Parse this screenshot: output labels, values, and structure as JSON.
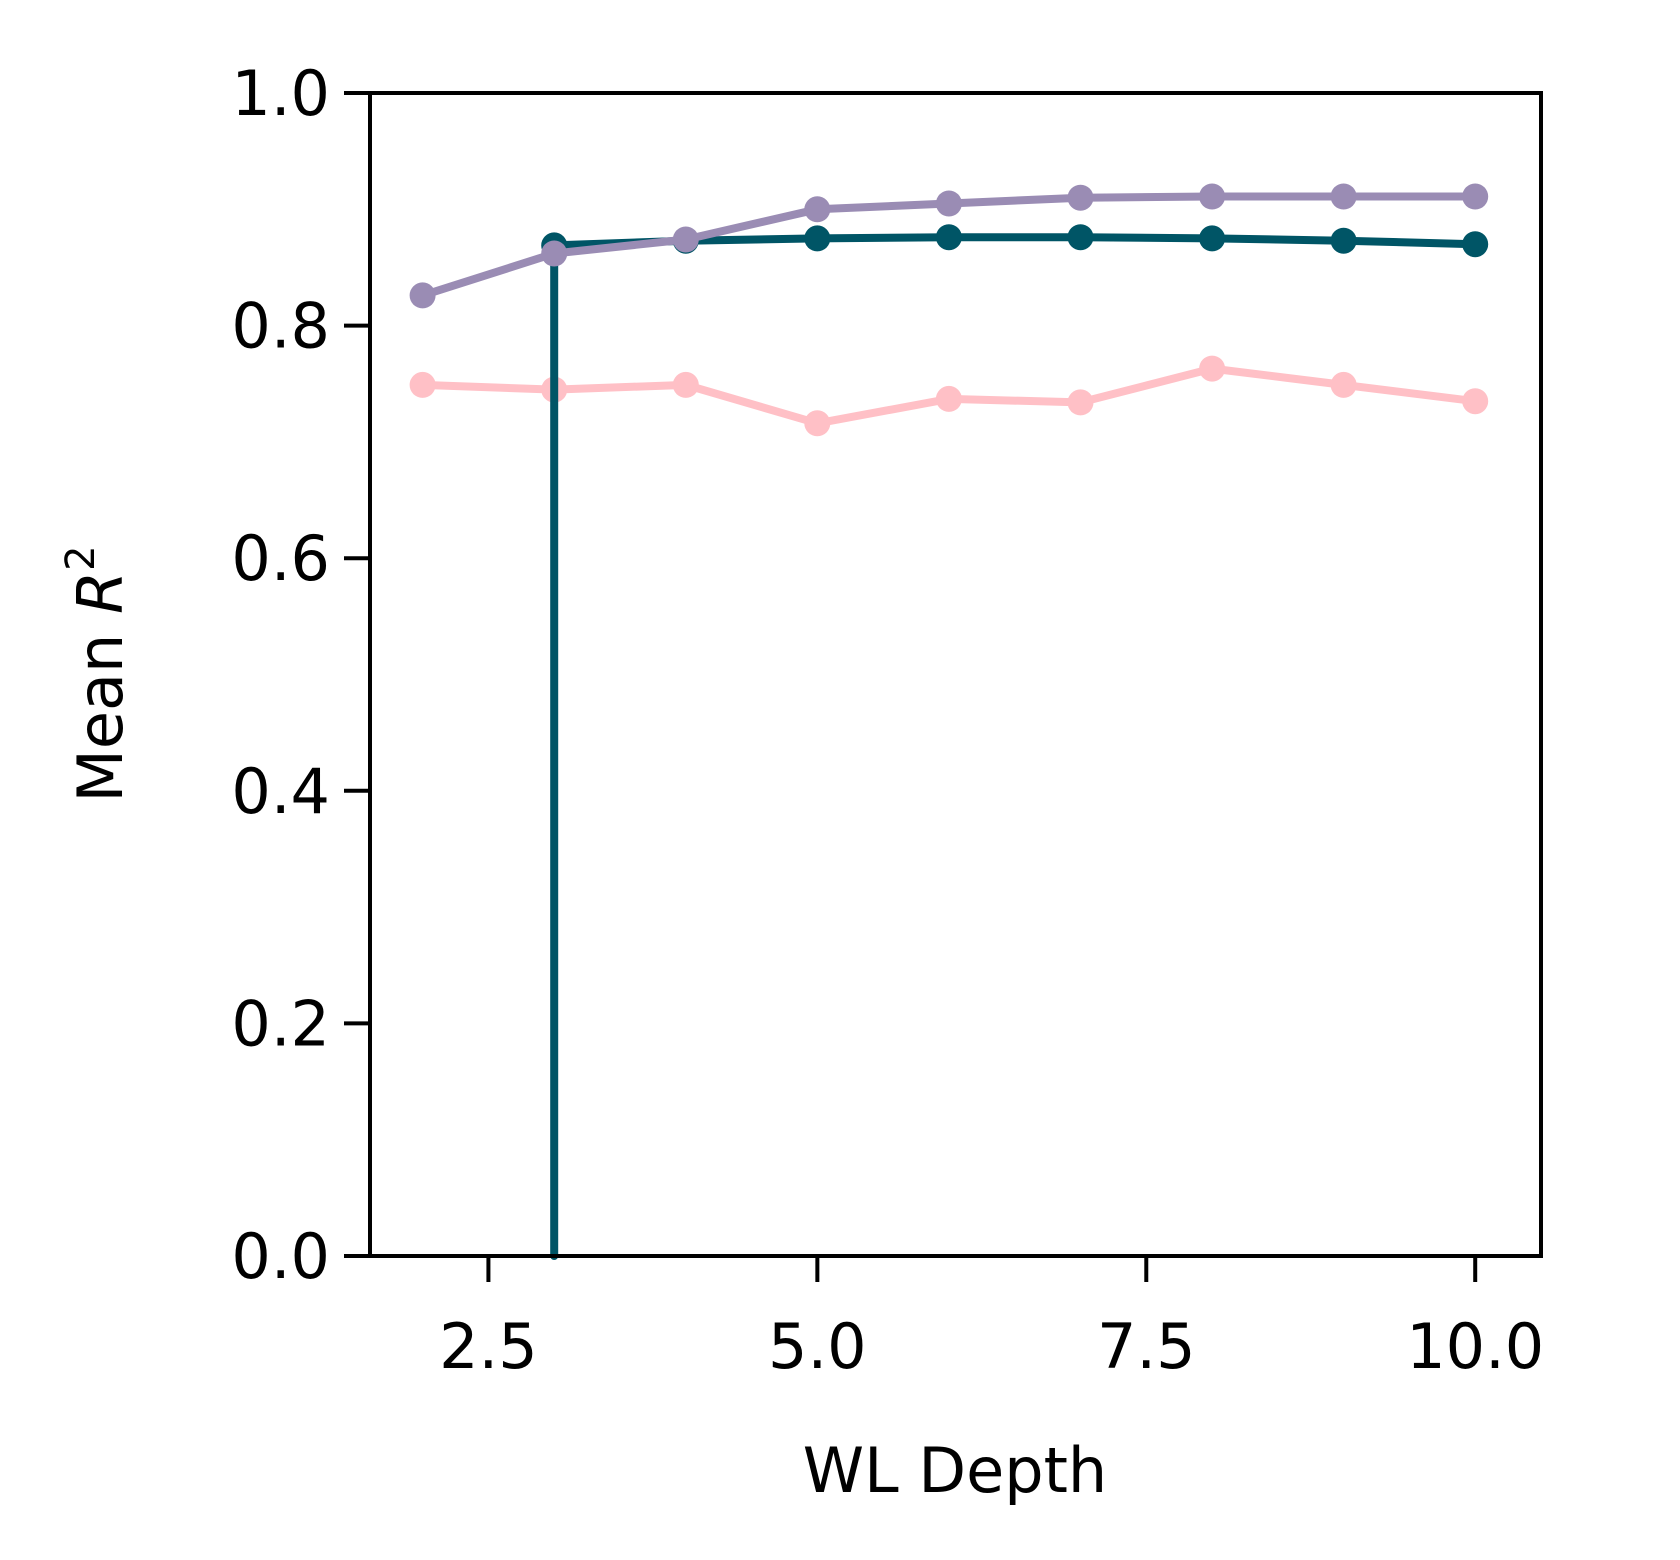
{
  "chart_data": {
    "type": "line",
    "xlabel": "WL Depth",
    "ylabel_text": "Mean ",
    "ylabel_var": "R",
    "ylabel_sup": "2",
    "xlim": [
      1.6,
      10.5
    ],
    "ylim": [
      0.0,
      1.0
    ],
    "xticks": [
      2.5,
      5.0,
      7.5,
      10.0
    ],
    "xtick_labels": [
      "2.5",
      "5.0",
      "7.5",
      "10.0"
    ],
    "yticks": [
      0.0,
      0.2,
      0.4,
      0.6,
      0.8,
      1.0
    ],
    "ytick_labels": [
      "0.0",
      "0.2",
      "0.4",
      "0.6",
      "0.8",
      "1.0"
    ],
    "grid": false,
    "series": [
      {
        "color": "#ffc0c6",
        "x": [
          2,
          3,
          4,
          5,
          6,
          7,
          8,
          9,
          10
        ],
        "y": [
          0.749,
          0.745,
          0.749,
          0.716,
          0.737,
          0.734,
          0.763,
          0.749,
          0.735
        ]
      },
      {
        "color": "#005566",
        "x": [
          3,
          3,
          4,
          5,
          6,
          7,
          8,
          9,
          10
        ],
        "y": [
          0.0,
          0.869,
          0.873,
          0.875,
          0.876,
          0.876,
          0.875,
          0.873,
          0.87
        ],
        "marker_start": 1
      },
      {
        "color": "#9a8cb4",
        "x": [
          2,
          3,
          4,
          5,
          6,
          7,
          8,
          9,
          10
        ],
        "y": [
          0.826,
          0.862,
          0.874,
          0.9,
          0.905,
          0.91,
          0.911,
          0.911,
          0.911
        ]
      }
    ]
  }
}
